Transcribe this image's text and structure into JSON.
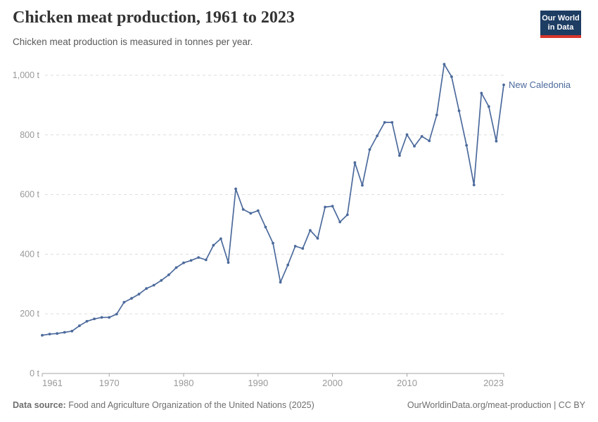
{
  "header": {
    "logo_line1": "Our World",
    "logo_line2": "in Data"
  },
  "colors": {
    "line": "#4C6A9C",
    "grid": "#dddddd",
    "axis": "#a5a5a5",
    "tick": "#999999",
    "logo_navy": "#1d3d63",
    "logo_red": "#d8352c"
  },
  "chart_data": {
    "type": "line",
    "title": "Chicken meat production, 1961 to 2023",
    "subtitle": "Chicken meat production is measured in tonnes per year.",
    "unit": "t",
    "xlim": [
      1961,
      2023
    ],
    "ylim": [
      0,
      1050
    ],
    "grid": true,
    "legend_position": "end-of-line-label",
    "x_ticks": [
      1961,
      1970,
      1980,
      1990,
      2000,
      2010,
      2023
    ],
    "x_tick_labels": [
      "1961",
      "1970",
      "1980",
      "1990",
      "2000",
      "2010",
      "2023"
    ],
    "y_ticks": [
      0,
      200,
      400,
      600,
      800,
      1000
    ],
    "y_tick_labels": [
      "0 t",
      "200 t",
      "400 t",
      "600 t",
      "800 t",
      "1,000 t"
    ],
    "series": [
      {
        "name": "New Caledonia",
        "color": "#4C6A9C",
        "x": [
          1961,
          1962,
          1963,
          1964,
          1965,
          1966,
          1967,
          1968,
          1969,
          1970,
          1971,
          1972,
          1973,
          1974,
          1975,
          1976,
          1977,
          1978,
          1979,
          1980,
          1981,
          1982,
          1983,
          1984,
          1985,
          1986,
          1987,
          1988,
          1989,
          1990,
          1991,
          1992,
          1993,
          1994,
          1995,
          1996,
          1997,
          1998,
          1999,
          2000,
          2001,
          2002,
          2003,
          2004,
          2005,
          2006,
          2007,
          2008,
          2009,
          2010,
          2011,
          2012,
          2013,
          2014,
          2015,
          2016,
          2017,
          2018,
          2019,
          2020,
          2021,
          2022,
          2023
        ],
        "values": [
          128,
          132,
          134,
          138,
          142,
          160,
          175,
          183,
          188,
          188,
          199,
          239,
          252,
          266,
          285,
          296,
          312,
          331,
          355,
          371,
          379,
          389,
          381,
          430,
          452,
          372,
          619,
          550,
          537,
          546,
          491,
          437,
          306,
          364,
          427,
          419,
          480,
          453,
          558,
          561,
          508,
          532,
          707,
          631,
          751,
          797,
          842,
          842,
          731,
          801,
          762,
          795,
          780,
          867,
          1037,
          995,
          881,
          765,
          632,
          940,
          895,
          779,
          968
        ]
      }
    ]
  },
  "footer": {
    "datasource_label": "Data source:",
    "datasource_value": "Food and Agriculture Organization of the United Nations (2025)",
    "credit": "OurWorldinData.org/meat-production | CC BY"
  }
}
